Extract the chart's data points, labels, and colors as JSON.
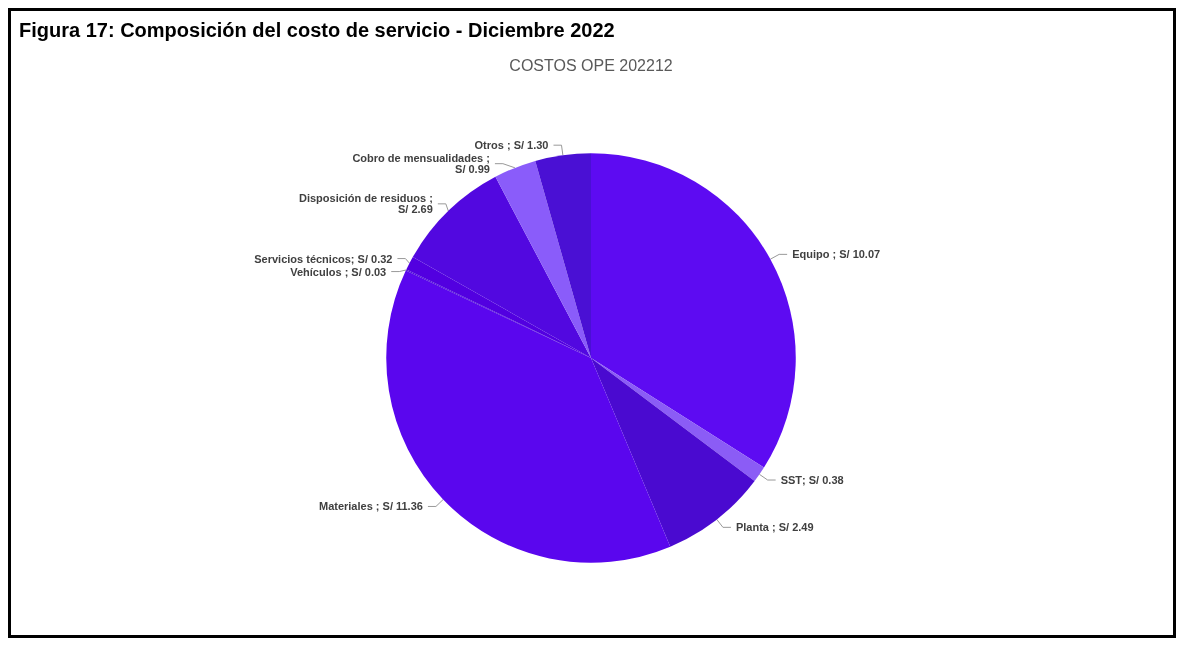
{
  "chart_data": {
    "type": "pie",
    "title": "Figura 17: Composición del costo de servicio - Diciembre 2022",
    "subtitle": "COSTOS OPE 202212",
    "categories": [
      "Equipo",
      "SST",
      "Planta",
      "Materiales",
      "Vehículos",
      "Servicios técnicos",
      "Disposición de residuos",
      "Cobro de mensualidades",
      "Otros"
    ],
    "values": [
      10.07,
      0.38,
      2.49,
      11.36,
      0.03,
      0.32,
      2.69,
      0.99,
      1.3
    ],
    "colors": [
      "#5d0bf2",
      "#8b5cf6",
      "#4a0ad0",
      "#5a06ee",
      "#4c08d8",
      "#5200e0",
      "#5208e0",
      "#8a5cfa",
      "#4a10d4"
    ],
    "value_labels": [
      " ; S/ 10.07",
      "; S/ 0.38",
      " ; S/ 2.49",
      " ; S/ 11.36",
      " ; S/ 0.03",
      "; S/ 0.32",
      " ;\nS/ 2.69",
      " ;\nS/ 0.99",
      " ; S/ 1.30"
    ],
    "legend": false
  }
}
